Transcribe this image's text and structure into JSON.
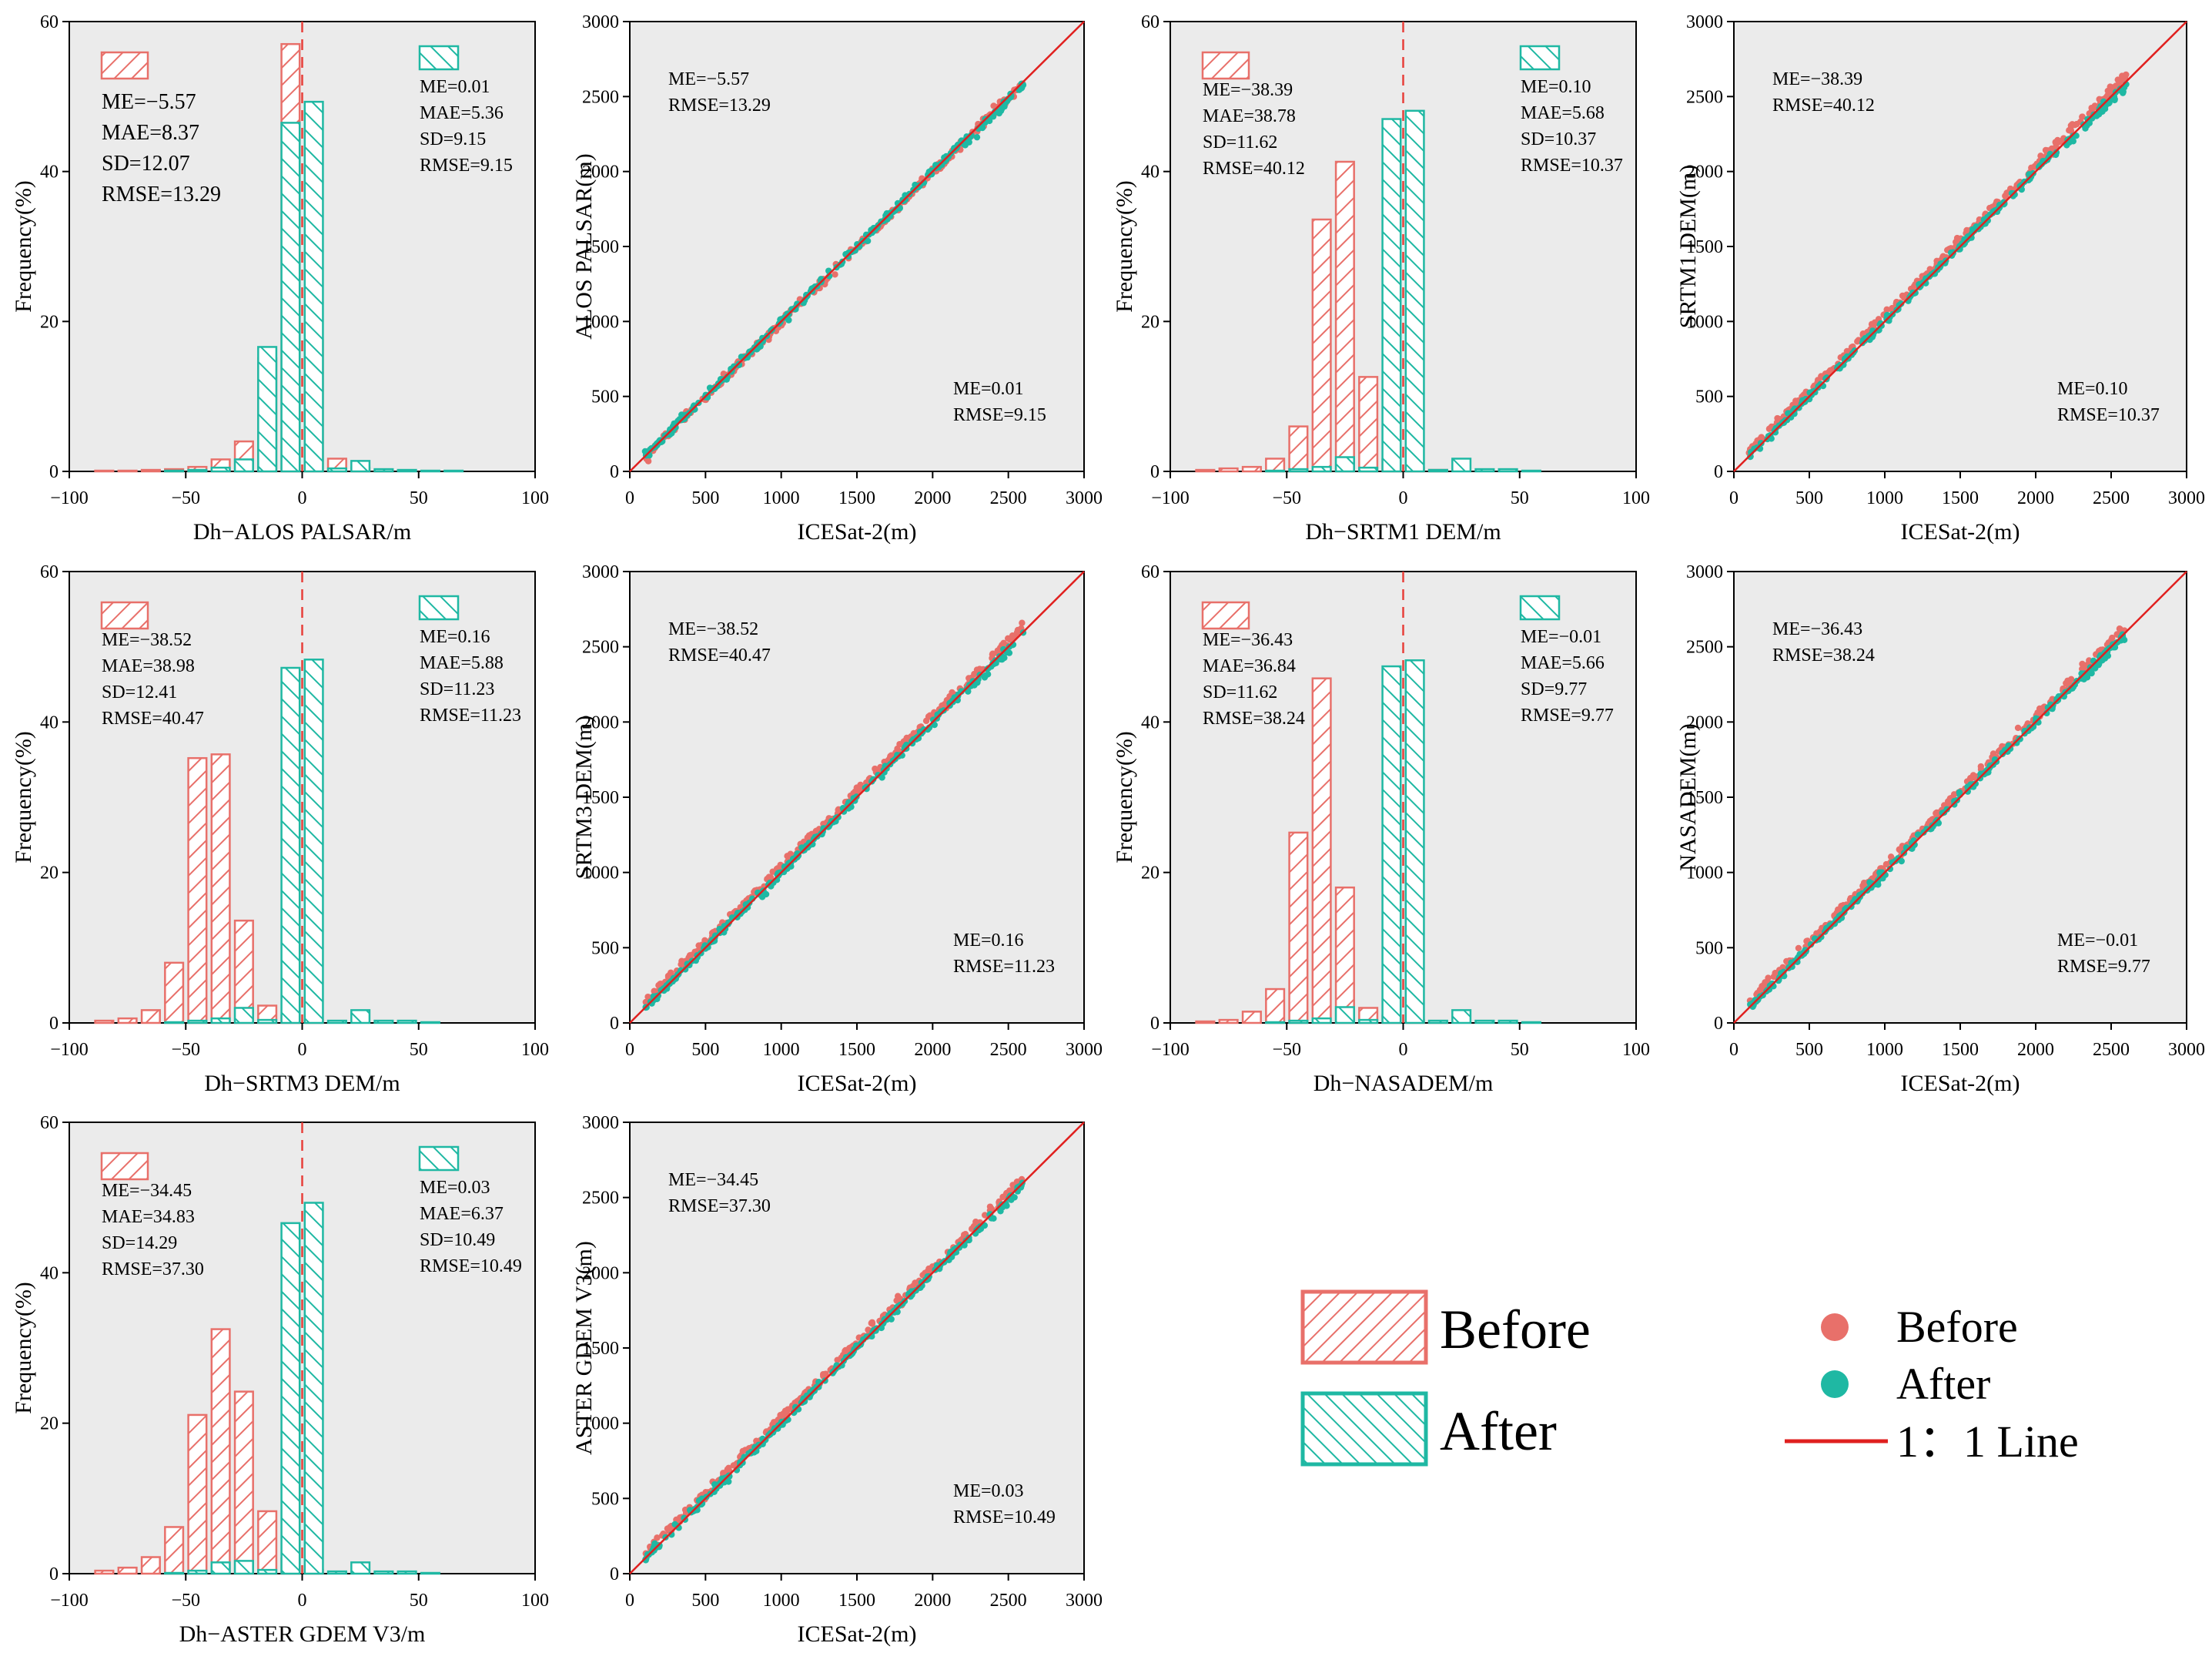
{
  "figure": {
    "legend_hist": {
      "before": "Before",
      "after": "After"
    },
    "legend_scatter": {
      "before": "Before",
      "after": "After",
      "line": "1：1 Line"
    }
  },
  "colors": {
    "before": "#e8706a",
    "after": "#1fb8a3",
    "plot_bg": "#ebebeb",
    "one_to_one": "#e0201f",
    "zero_line": "#e8403a"
  },
  "chart_data": [
    {
      "id": "hist-alos",
      "type": "bar",
      "xlabel": "Dh−ALOS PALSAR/m",
      "ylabel": "Frequency(%)",
      "xlim": [
        -100,
        100
      ],
      "ylim": [
        0,
        60
      ],
      "xticks": [
        "−100",
        "−50",
        "0",
        "50",
        "100"
      ],
      "yticks": [
        "0",
        "20",
        "40",
        "60"
      ],
      "bin_width": 10,
      "series": [
        {
          "name": "Before",
          "centers": [
            -85,
            -75,
            -65,
            -55,
            -45,
            -35,
            -25,
            -15,
            -5,
            5,
            15,
            25,
            35
          ],
          "values": [
            0.1,
            0.1,
            0.2,
            0.3,
            0.6,
            1.6,
            4.0,
            15.1,
            57.0,
            17.5,
            1.7,
            0.5,
            0.1
          ]
        },
        {
          "name": "After",
          "centers": [
            -55,
            -45,
            -35,
            -25,
            -15,
            -5,
            5,
            15,
            25,
            35,
            45,
            55,
            65
          ],
          "values": [
            0.1,
            0.2,
            0.5,
            1.6,
            16.6,
            46.5,
            49.3,
            0.4,
            1.4,
            0.3,
            0.2,
            0.1,
            0.1
          ]
        }
      ],
      "stats_before": [
        "ME=−5.57",
        "MAE=8.37",
        "SD=12.07",
        "RMSE=13.29"
      ],
      "stats_after": [
        "ME=0.01",
        "MAE=5.36",
        "SD=9.15",
        "RMSE=9.15"
      ]
    },
    {
      "id": "scatter-alos",
      "type": "scatter",
      "xlabel": "ICESat-2(m)",
      "ylabel": "ALOS PALSAR(m)",
      "xlim": [
        0,
        3000
      ],
      "ylim": [
        0,
        3000
      ],
      "xticks": [
        "0",
        "500",
        "1000",
        "1500",
        "2000",
        "2500",
        "3000"
      ],
      "yticks": [
        "0",
        "500",
        "1000",
        "1500",
        "2000",
        "2500",
        "3000"
      ],
      "x_range": [
        100,
        2600
      ],
      "before_offset": -5.57,
      "after_offset": 0.01,
      "stats_before": [
        "ME=−5.57",
        "RMSE=13.29"
      ],
      "stats_after": [
        "ME=0.01",
        "RMSE=9.15"
      ]
    },
    {
      "id": "hist-srtm1",
      "type": "bar",
      "xlabel": "Dh−SRTM1 DEM/m",
      "ylabel": "Frequency(%)",
      "xlim": [
        -100,
        100
      ],
      "ylim": [
        0,
        60
      ],
      "xticks": [
        "−100",
        "−50",
        "0",
        "50",
        "100"
      ],
      "yticks": [
        "0",
        "20",
        "40",
        "60"
      ],
      "bin_width": 10,
      "series": [
        {
          "name": "Before",
          "centers": [
            -85,
            -75,
            -65,
            -55,
            -45,
            -35,
            -25,
            -15,
            -5,
            5,
            15
          ],
          "values": [
            0.2,
            0.4,
            0.6,
            1.7,
            6.0,
            33.6,
            41.3,
            12.6,
            1.6,
            0.5,
            0.2
          ]
        },
        {
          "name": "After",
          "centers": [
            -55,
            -45,
            -35,
            -25,
            -15,
            -5,
            5,
            15,
            25,
            35,
            45,
            55
          ],
          "values": [
            0.1,
            0.3,
            0.6,
            1.9,
            0.5,
            47.0,
            48.1,
            0.2,
            1.7,
            0.3,
            0.3,
            0.1
          ]
        }
      ],
      "stats_before": [
        "ME=−38.39",
        "MAE=38.78",
        "SD=11.62",
        "RMSE=40.12"
      ],
      "stats_after": [
        "ME=0.10",
        "MAE=5.68",
        "SD=10.37",
        "RMSE=10.37"
      ]
    },
    {
      "id": "scatter-srtm1",
      "type": "scatter",
      "xlabel": "ICESat-2(m)",
      "ylabel": "SRTM1 DEM(m)",
      "xlim": [
        0,
        3000
      ],
      "ylim": [
        0,
        3000
      ],
      "xticks": [
        "0",
        "500",
        "1000",
        "1500",
        "2000",
        "2500",
        "3000"
      ],
      "yticks": [
        "0",
        "500",
        "1000",
        "1500",
        "2000",
        "2500",
        "3000"
      ],
      "x_range": [
        100,
        2600
      ],
      "before_offset": 38.39,
      "after_offset": 0.1,
      "stats_before": [
        "ME=−38.39",
        "RMSE=40.12"
      ],
      "stats_after": [
        "ME=0.10",
        "RMSE=10.37"
      ]
    },
    {
      "id": "hist-srtm3",
      "type": "bar",
      "xlabel": "Dh−SRTM3 DEM/m",
      "ylabel": "Frequency(%)",
      "xlim": [
        -100,
        100
      ],
      "ylim": [
        0,
        60
      ],
      "xticks": [
        "−100",
        "−50",
        "0",
        "50",
        "100"
      ],
      "yticks": [
        "0",
        "20",
        "40",
        "60"
      ],
      "bin_width": 10,
      "series": [
        {
          "name": "Before",
          "centers": [
            -85,
            -75,
            -65,
            -55,
            -45,
            -35,
            -25,
            -15,
            -5,
            5
          ],
          "values": [
            0.3,
            0.6,
            1.7,
            8.0,
            35.2,
            35.7,
            13.6,
            2.3,
            1.0,
            0.4
          ]
        },
        {
          "name": "After",
          "centers": [
            -55,
            -45,
            -35,
            -25,
            -15,
            -5,
            5,
            15,
            25,
            35,
            45,
            55
          ],
          "values": [
            0.1,
            0.3,
            0.6,
            2.0,
            0.4,
            47.2,
            48.3,
            0.3,
            1.7,
            0.3,
            0.3,
            0.1
          ]
        }
      ],
      "stats_before": [
        "ME=−38.52",
        "MAE=38.98",
        "SD=12.41",
        "RMSE=40.47"
      ],
      "stats_after": [
        "ME=0.16",
        "MAE=5.88",
        "SD=11.23",
        "RMSE=11.23"
      ]
    },
    {
      "id": "scatter-srtm3",
      "type": "scatter",
      "xlabel": "ICESat-2(m)",
      "ylabel": "SRTM3 DEM(m)",
      "xlim": [
        0,
        3000
      ],
      "ylim": [
        0,
        3000
      ],
      "xticks": [
        "0",
        "500",
        "1000",
        "1500",
        "2000",
        "2500",
        "3000"
      ],
      "yticks": [
        "0",
        "500",
        "1000",
        "1500",
        "2000",
        "2500",
        "3000"
      ],
      "x_range": [
        100,
        2600
      ],
      "before_offset": 38.52,
      "after_offset": 0.16,
      "stats_before": [
        "ME=−38.52",
        "RMSE=40.47"
      ],
      "stats_after": [
        "ME=0.16",
        "RMSE=11.23"
      ]
    },
    {
      "id": "hist-nasadem",
      "type": "bar",
      "xlabel": "Dh−NASADEM/m",
      "ylabel": "Frequency(%)",
      "xlim": [
        -100,
        100
      ],
      "ylim": [
        0,
        60
      ],
      "xticks": [
        "−100",
        "−50",
        "0",
        "50",
        "100"
      ],
      "yticks": [
        "0",
        "20",
        "40",
        "60"
      ],
      "bin_width": 10,
      "series": [
        {
          "name": "Before",
          "centers": [
            -85,
            -75,
            -65,
            -55,
            -45,
            -35,
            -25,
            -15,
            -5,
            5,
            15
          ],
          "values": [
            0.2,
            0.4,
            1.5,
            4.5,
            25.3,
            45.8,
            18.0,
            2.0,
            1.0,
            0.4,
            0.2
          ]
        },
        {
          "name": "After",
          "centers": [
            -55,
            -45,
            -35,
            -25,
            -15,
            -5,
            5,
            15,
            25,
            35,
            45,
            55
          ],
          "values": [
            0.1,
            0.3,
            0.6,
            2.1,
            0.4,
            47.4,
            48.2,
            0.3,
            1.7,
            0.3,
            0.3,
            0.1
          ]
        }
      ],
      "stats_before": [
        "ME=−36.43",
        "MAE=36.84",
        "SD=11.62",
        "RMSE=38.24"
      ],
      "stats_after": [
        "ME=−0.01",
        "MAE=5.66",
        "SD=9.77",
        "RMSE=9.77"
      ]
    },
    {
      "id": "scatter-nasadem",
      "type": "scatter",
      "xlabel": "ICESat-2(m)",
      "ylabel": "NASADEM(m)",
      "xlim": [
        0,
        3000
      ],
      "ylim": [
        0,
        3000
      ],
      "xticks": [
        "0",
        "500",
        "1000",
        "1500",
        "2000",
        "2500",
        "3000"
      ],
      "yticks": [
        "0",
        "500",
        "1000",
        "1500",
        "2000",
        "2500",
        "3000"
      ],
      "x_range": [
        100,
        2600
      ],
      "before_offset": 36.43,
      "after_offset": -0.01,
      "stats_before": [
        "ME=−36.43",
        "RMSE=38.24"
      ],
      "stats_after": [
        "ME=−0.01",
        "RMSE=9.77"
      ]
    },
    {
      "id": "hist-aster",
      "type": "bar",
      "xlabel": "Dh−ASTER GDEM V3/m",
      "ylabel": "Frequency(%)",
      "xlim": [
        -100,
        100
      ],
      "ylim": [
        0,
        60
      ],
      "xticks": [
        "−100",
        "−50",
        "0",
        "50",
        "100"
      ],
      "yticks": [
        "0",
        "20",
        "40",
        "60"
      ],
      "bin_width": 10,
      "series": [
        {
          "name": "Before",
          "centers": [
            -85,
            -75,
            -65,
            -55,
            -45,
            -35,
            -25,
            -15,
            -5,
            5
          ],
          "values": [
            0.4,
            0.8,
            2.2,
            6.2,
            21.1,
            32.5,
            24.2,
            8.3,
            2.0,
            0.5
          ]
        },
        {
          "name": "After",
          "centers": [
            -55,
            -45,
            -35,
            -25,
            -15,
            -5,
            5,
            15,
            25,
            35,
            45,
            55
          ],
          "values": [
            0.1,
            0.4,
            1.5,
            1.7,
            0.5,
            46.6,
            49.3,
            0.3,
            1.5,
            0.3,
            0.3,
            0.1
          ]
        }
      ],
      "stats_before": [
        "ME=−34.45",
        "MAE=34.83",
        "SD=14.29",
        "RMSE=37.30"
      ],
      "stats_after": [
        "ME=0.03",
        "MAE=6.37",
        "SD=10.49",
        "RMSE=10.49"
      ]
    },
    {
      "id": "scatter-aster",
      "type": "scatter",
      "xlabel": "ICESat-2(m)",
      "ylabel": "ASTER GDEM V3(m)",
      "xlim": [
        0,
        3000
      ],
      "ylim": [
        0,
        3000
      ],
      "xticks": [
        "0",
        "500",
        "1000",
        "1500",
        "2000",
        "2500",
        "3000"
      ],
      "yticks": [
        "0",
        "500",
        "1000",
        "1500",
        "2000",
        "2500",
        "3000"
      ],
      "x_range": [
        100,
        2600
      ],
      "before_offset": 34.45,
      "after_offset": 0.03,
      "stats_before": [
        "ME=−34.45",
        "RMSE=37.30"
      ],
      "stats_after": [
        "ME=0.03",
        "RMSE=10.49"
      ]
    }
  ]
}
